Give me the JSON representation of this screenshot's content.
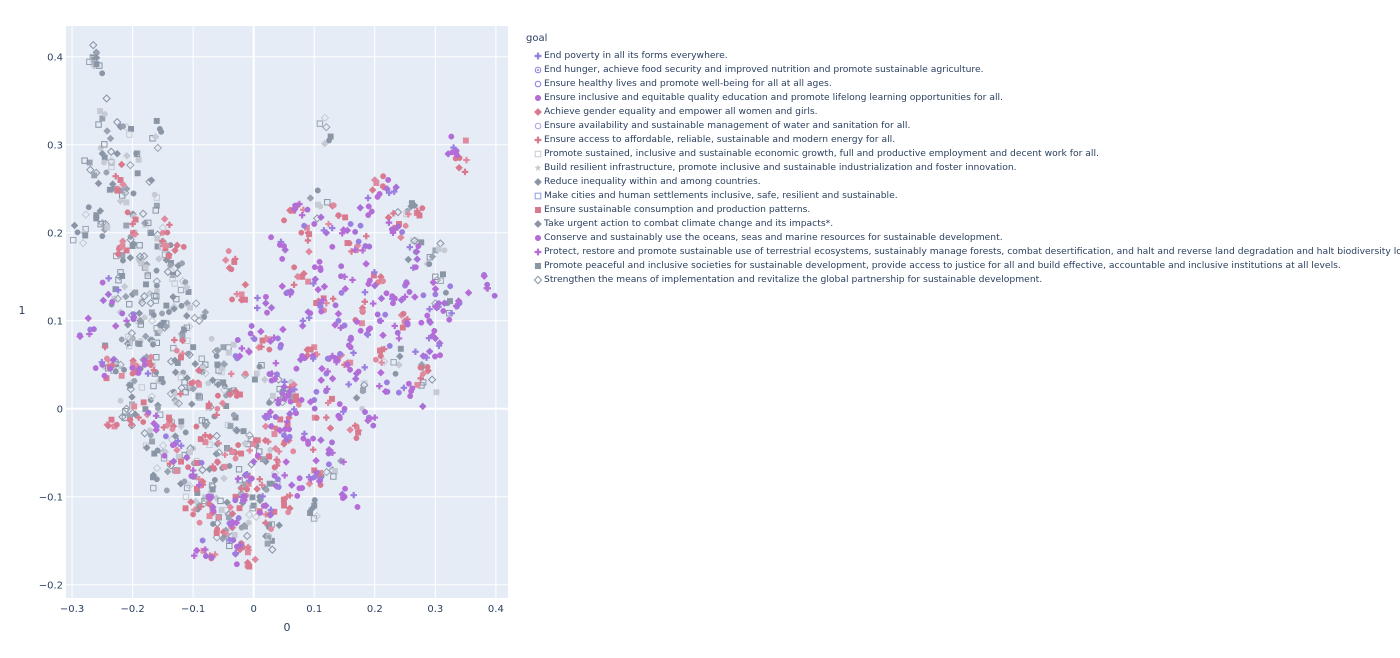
{
  "legend": {
    "title": "goal",
    "items": [
      {
        "label": "End poverty in all its forms everywhere.",
        "symbol": "cross",
        "color": "#8f7fe0"
      },
      {
        "label": "End hunger, achieve food security and improved nutrition and promote sustainable agriculture.",
        "symbol": "circle-open-dot",
        "color": "#8f7fe0"
      },
      {
        "label": "Ensure healthy lives and promote well-being for all at all ages.",
        "symbol": "circle-open",
        "color": "#8f7fe0"
      },
      {
        "label": "Ensure inclusive and equitable quality education and promote lifelong learning opportunities for all.",
        "symbol": "circle",
        "color": "#b56cd6"
      },
      {
        "label": "Achieve gender equality and empower all women and girls.",
        "symbol": "diamond",
        "color": "#d9798e"
      },
      {
        "label": "Ensure availability and sustainable management of water and sanitation for all.",
        "symbol": "circle-open",
        "color": "#b79be8"
      },
      {
        "label": "Ensure access to affordable, reliable, sustainable and modern energy for all.",
        "symbol": "cross",
        "color": "#d9798e"
      },
      {
        "label": "Promote sustained, inclusive and sustainable economic growth, full and productive employment and decent work for all.",
        "symbol": "square-open",
        "color": "#c5cad4"
      },
      {
        "label": "Build resilient infrastructure, promote inclusive and sustainable industrialization and foster innovation.",
        "symbol": "star",
        "color": "#c5cad4"
      },
      {
        "label": "Reduce inequality within and among countries.",
        "symbol": "diamond",
        "color": "#8a95a5"
      },
      {
        "label": "Make cities and human settlements inclusive, safe, resilient and sustainable.",
        "symbol": "square-open",
        "color": "#8f9be0"
      },
      {
        "label": "Ensure sustainable consumption and production patterns.",
        "symbol": "square",
        "color": "#d9798e"
      },
      {
        "label": "Take urgent action to combat climate change and its impacts*.",
        "symbol": "diamond",
        "color": "#8a95a5"
      },
      {
        "label": "Conserve and sustainably use the oceans, seas and marine resources for sustainable development.",
        "symbol": "circle",
        "color": "#b56cd6"
      },
      {
        "label": "Protect, restore and promote sustainable use of terrestrial ecosystems, sustainably manage forests, combat desertification, and halt and reverse land degradation and halt biodiversity loss.",
        "symbol": "cross",
        "color": "#b56cd6"
      },
      {
        "label": "Promote peaceful and inclusive societies for sustainable development, provide access to justice for all and build effective, accountable and inclusive institutions at all levels.",
        "symbol": "square",
        "color": "#8a95a5"
      },
      {
        "label": "Strengthen the means of implementation and revitalize the global partnership for sustainable development.",
        "symbol": "diamond-open",
        "color": "#8a95a5"
      }
    ]
  },
  "chart_data": {
    "type": "scatter",
    "title": "",
    "xlabel": "0",
    "ylabel": "1",
    "xlim": [
      -0.31,
      0.42
    ],
    "ylim": [
      -0.215,
      0.435
    ],
    "x_ticks": [
      -0.3,
      -0.2,
      -0.1,
      0,
      0.1,
      0.2,
      0.3,
      0.4
    ],
    "x_tick_labels": [
      "−0.3",
      "−0.2",
      "−0.1",
      "0",
      "0.1",
      "0.2",
      "0.3",
      "0.4"
    ],
    "y_ticks": [
      -0.2,
      -0.1,
      0,
      0.1,
      0.2,
      0.3,
      0.4
    ],
    "y_tick_labels": [
      "−0.2",
      "−0.1",
      "0",
      "0.1",
      "0.2",
      "0.3",
      "0.4"
    ],
    "grid": true,
    "legend_position": "right",
    "background_color": "#e5ecf6",
    "grid_color": "#ffffff",
    "clusters": [
      {
        "name": "grey-cluster",
        "colors": [
          "#8a95a5",
          "#8a95a5",
          "#9aa3b2",
          "#c5cad4"
        ],
        "symbols": [
          "diamond",
          "square",
          "circle",
          "square-open",
          "diamond-open"
        ],
        "points": [
          [
            -0.26,
            0.405
          ],
          [
            -0.255,
            0.39
          ],
          [
            -0.25,
            0.33
          ],
          [
            -0.21,
            0.32
          ],
          [
            -0.155,
            0.318
          ],
          [
            -0.25,
            0.29
          ],
          [
            -0.235,
            0.28
          ],
          [
            -0.19,
            0.283
          ],
          [
            -0.26,
            0.268
          ],
          [
            -0.23,
            0.25
          ],
          [
            -0.21,
            0.25
          ],
          [
            -0.16,
            0.24
          ],
          [
            -0.26,
            0.22
          ],
          [
            -0.245,
            0.21
          ],
          [
            -0.2,
            0.22
          ],
          [
            -0.28,
            0.2
          ],
          [
            -0.17,
            0.2
          ],
          [
            -0.2,
            0.185
          ],
          [
            -0.15,
            0.19
          ],
          [
            -0.19,
            0.17
          ],
          [
            -0.14,
            0.175
          ],
          [
            -0.22,
            0.155
          ],
          [
            -0.18,
            0.16
          ],
          [
            -0.13,
            0.16
          ],
          [
            -0.16,
            0.14
          ],
          [
            -0.2,
            0.13
          ],
          [
            -0.12,
            0.135
          ],
          [
            -0.23,
            0.125
          ],
          [
            -0.17,
            0.12
          ],
          [
            -0.14,
            0.11
          ],
          [
            -0.11,
            0.12
          ],
          [
            -0.19,
            0.1
          ],
          [
            -0.15,
            0.095
          ],
          [
            -0.09,
            0.1
          ],
          [
            -0.2,
            0.08
          ],
          [
            -0.12,
            0.085
          ],
          [
            -0.16,
            0.075
          ],
          [
            -0.1,
            0.07
          ],
          [
            -0.22,
            0.05
          ],
          [
            -0.17,
            0.05
          ],
          [
            -0.13,
            0.055
          ],
          [
            -0.08,
            0.05
          ],
          [
            -0.05,
            0.07
          ],
          [
            -0.2,
            0.03
          ],
          [
            -0.15,
            0.03
          ],
          [
            -0.11,
            0.035
          ],
          [
            -0.06,
            0.03
          ],
          [
            0.005,
            0.04
          ],
          [
            -0.2,
            -0.005
          ],
          [
            -0.17,
            0.01
          ],
          [
            -0.13,
            0.01
          ],
          [
            -0.09,
            0.015
          ],
          [
            -0.04,
            0.02
          ],
          [
            0.03,
            0.01
          ],
          [
            -0.17,
            -0.03
          ],
          [
            -0.12,
            -0.02
          ],
          [
            -0.08,
            -0.015
          ],
          [
            -0.03,
            -0.01
          ],
          [
            -0.15,
            -0.05
          ],
          [
            -0.1,
            -0.045
          ],
          [
            -0.06,
            -0.04
          ],
          [
            -0.01,
            -0.04
          ],
          [
            -0.13,
            -0.07
          ],
          [
            -0.085,
            -0.07
          ],
          [
            -0.04,
            -0.065
          ],
          [
            0.02,
            -0.06
          ],
          [
            -0.11,
            -0.09
          ],
          [
            -0.07,
            -0.095
          ],
          [
            -0.02,
            -0.09
          ],
          [
            0.03,
            -0.085
          ],
          [
            -0.09,
            -0.11
          ],
          [
            -0.045,
            -0.115
          ],
          [
            0.0,
            -0.11
          ],
          [
            -0.06,
            -0.13
          ],
          [
            -0.02,
            -0.135
          ],
          [
            0.02,
            -0.13
          ],
          [
            -0.04,
            -0.15
          ],
          [
            0.03,
            -0.15
          ],
          [
            0.12,
            0.32
          ],
          [
            0.11,
            0.23
          ],
          [
            0.26,
            0.23
          ],
          [
            0.3,
            0.15
          ],
          [
            0.3,
            0.18
          ],
          [
            0.27,
            0.19
          ],
          [
            0.32,
            0.12
          ],
          [
            -0.155,
            0.095
          ],
          [
            -0.205,
            0.075
          ],
          [
            -0.245,
            0.048
          ],
          [
            -0.21,
            0.0
          ],
          [
            -0.16,
            -0.08
          ],
          [
            -0.05,
            0.05
          ],
          [
            0.06,
            0.02
          ],
          [
            0.1,
            -0.11
          ],
          [
            0.13,
            -0.07
          ],
          [
            0.18,
            0.02
          ],
          [
            0.24,
            0.05
          ],
          [
            0.28,
            0.03
          ]
        ]
      },
      {
        "name": "pink-cluster",
        "colors": [
          "#d9798e",
          "#d9798e",
          "#e08aa0"
        ],
        "symbols": [
          "square",
          "diamond",
          "circle",
          "cross"
        ],
        "points": [
          [
            -0.22,
            0.26
          ],
          [
            -0.2,
            0.21
          ],
          [
            -0.15,
            0.2
          ],
          [
            -0.13,
            0.18
          ],
          [
            -0.21,
            0.18
          ],
          [
            -0.24,
            0.055
          ],
          [
            -0.2,
            0.04
          ],
          [
            -0.17,
            0.05
          ],
          [
            -0.23,
            -0.02
          ],
          [
            -0.19,
            -0.01
          ],
          [
            -0.12,
            0.06
          ],
          [
            -0.1,
            0.03
          ],
          [
            -0.14,
            -0.01
          ],
          [
            -0.08,
            -0.03
          ],
          [
            -0.06,
            0.0
          ],
          [
            -0.03,
            0.02
          ],
          [
            -0.12,
            -0.06
          ],
          [
            -0.09,
            -0.08
          ],
          [
            -0.06,
            -0.06
          ],
          [
            -0.03,
            -0.05
          ],
          [
            0.0,
            -0.04
          ],
          [
            0.03,
            -0.02
          ],
          [
            -0.1,
            -0.12
          ],
          [
            -0.07,
            -0.11
          ],
          [
            -0.03,
            -0.1
          ],
          [
            0.01,
            -0.08
          ],
          [
            0.04,
            -0.06
          ],
          [
            -0.05,
            -0.14
          ],
          [
            -0.02,
            -0.155
          ],
          [
            0.02,
            -0.12
          ],
          [
            -0.07,
            -0.17
          ],
          [
            -0.01,
            -0.175
          ],
          [
            0.065,
            0.225
          ],
          [
            0.09,
            0.2
          ],
          [
            0.14,
            0.22
          ],
          [
            0.2,
            0.26
          ],
          [
            0.24,
            0.21
          ],
          [
            0.27,
            0.225
          ],
          [
            0.17,
            0.18
          ],
          [
            0.21,
            0.15
          ],
          [
            0.08,
            0.15
          ],
          [
            0.12,
            0.12
          ],
          [
            0.18,
            0.11
          ],
          [
            0.25,
            0.1
          ],
          [
            0.1,
            0.07
          ],
          [
            0.15,
            0.05
          ],
          [
            0.21,
            0.06
          ],
          [
            0.28,
            0.04
          ],
          [
            0.07,
            0.01
          ],
          [
            0.12,
            -0.01
          ],
          [
            0.17,
            -0.02
          ],
          [
            0.05,
            -0.04
          ],
          [
            0.1,
            -0.07
          ],
          [
            0.055,
            -0.1
          ],
          [
            0.34,
            0.285
          ],
          [
            -0.04,
            0.16
          ],
          [
            -0.02,
            0.13
          ],
          [
            0.02,
            0.08
          ]
        ]
      },
      {
        "name": "purple-cluster",
        "colors": [
          "#b56cd6",
          "#b56cd6",
          "#a970d8",
          "#9b7fe0"
        ],
        "symbols": [
          "circle",
          "circle",
          "diamond",
          "cross"
        ],
        "points": [
          [
            0.335,
            0.293
          ],
          [
            0.385,
            0.137
          ],
          [
            0.315,
            0.12
          ],
          [
            0.34,
            0.12
          ],
          [
            0.05,
            0.185
          ],
          [
            0.08,
            0.22
          ],
          [
            0.12,
            0.2
          ],
          [
            0.16,
            0.21
          ],
          [
            0.19,
            0.23
          ],
          [
            0.23,
            0.2
          ],
          [
            0.27,
            0.17
          ],
          [
            0.3,
            0.13
          ],
          [
            0.11,
            0.16
          ],
          [
            0.15,
            0.15
          ],
          [
            0.2,
            0.14
          ],
          [
            0.25,
            0.14
          ],
          [
            0.29,
            0.1
          ],
          [
            0.06,
            0.13
          ],
          [
            0.09,
            0.11
          ],
          [
            0.14,
            0.1
          ],
          [
            0.19,
            0.09
          ],
          [
            0.24,
            0.08
          ],
          [
            0.28,
            0.06
          ],
          [
            0.04,
            0.08
          ],
          [
            0.08,
            0.06
          ],
          [
            0.13,
            0.06
          ],
          [
            0.17,
            0.04
          ],
          [
            0.22,
            0.03
          ],
          [
            0.26,
            0.02
          ],
          [
            0.03,
            0.04
          ],
          [
            0.06,
            0.02
          ],
          [
            0.1,
            0.01
          ],
          [
            0.15,
            0.0
          ],
          [
            0.2,
            -0.01
          ],
          [
            0.02,
            -0.01
          ],
          [
            0.05,
            -0.03
          ],
          [
            0.09,
            -0.04
          ],
          [
            0.13,
            -0.05
          ],
          [
            0.0,
            -0.06
          ],
          [
            0.04,
            -0.08
          ],
          [
            0.08,
            -0.09
          ],
          [
            -0.02,
            -0.1
          ],
          [
            0.02,
            -0.11
          ],
          [
            -0.04,
            -0.13
          ],
          [
            -0.07,
            -0.1
          ],
          [
            -0.1,
            -0.07
          ],
          [
            -0.13,
            -0.04
          ],
          [
            -0.16,
            -0.02
          ],
          [
            -0.18,
            0.05
          ],
          [
            -0.21,
            0.1
          ],
          [
            -0.24,
            0.13
          ],
          [
            -0.27,
            0.09
          ],
          [
            -0.25,
            0.05
          ],
          [
            -0.08,
            -0.16
          ],
          [
            -0.03,
            -0.165
          ],
          [
            0.11,
            -0.08
          ],
          [
            0.15,
            -0.1
          ],
          [
            0.0,
            0.08
          ],
          [
            0.02,
            0.12
          ],
          [
            -0.03,
            0.06
          ],
          [
            0.23,
            0.12
          ],
          [
            0.18,
            0.18
          ],
          [
            0.22,
            0.25
          ],
          [
            0.11,
            0.12
          ],
          [
            0.16,
            0.07
          ],
          [
            0.21,
            0.1
          ],
          [
            0.3,
            0.08
          ],
          [
            0.12,
            0.04
          ],
          [
            0.07,
            -0.005
          ],
          [
            0.04,
            0.01
          ]
        ]
      }
    ]
  }
}
